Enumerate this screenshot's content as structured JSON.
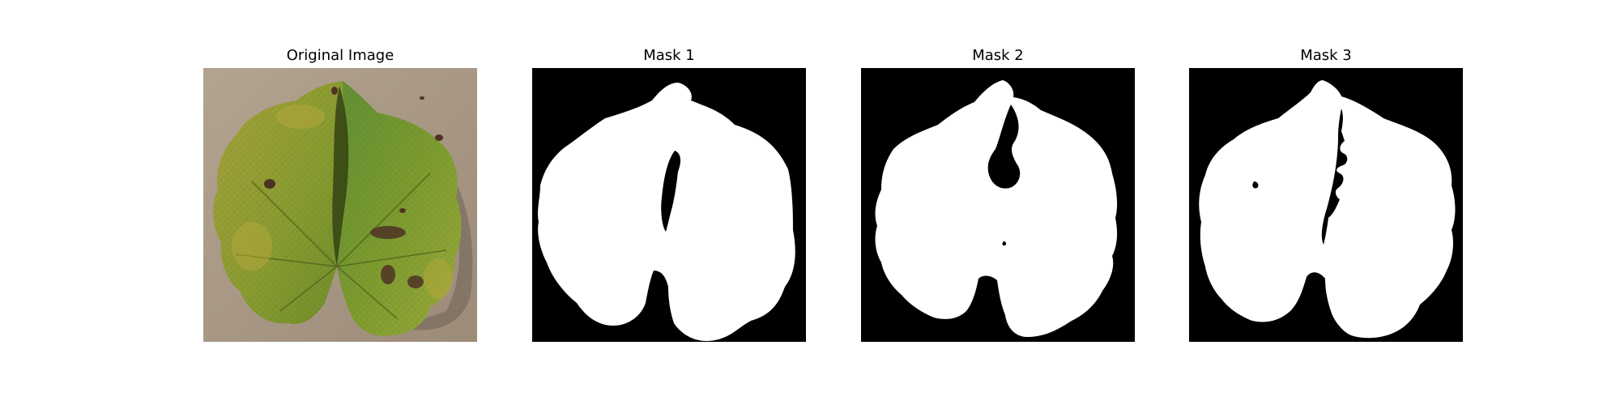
{
  "figure": {
    "panels": [
      {
        "title": "Original Image",
        "kind": "photo"
      },
      {
        "title": "Mask 1",
        "kind": "mask"
      },
      {
        "title": "Mask 2",
        "kind": "mask"
      },
      {
        "title": "Mask 3",
        "kind": "mask"
      }
    ]
  },
  "colors": {
    "page_background": "#ffffff",
    "mask_background": "#000000",
    "mask_foreground": "#ffffff",
    "photo_background": "#a89886",
    "leaf_yellow_green": "#8f9a2e",
    "leaf_green": "#6f8f2a",
    "leaf_dark": "#3d4a14",
    "lesion": "#5a3a2a"
  }
}
